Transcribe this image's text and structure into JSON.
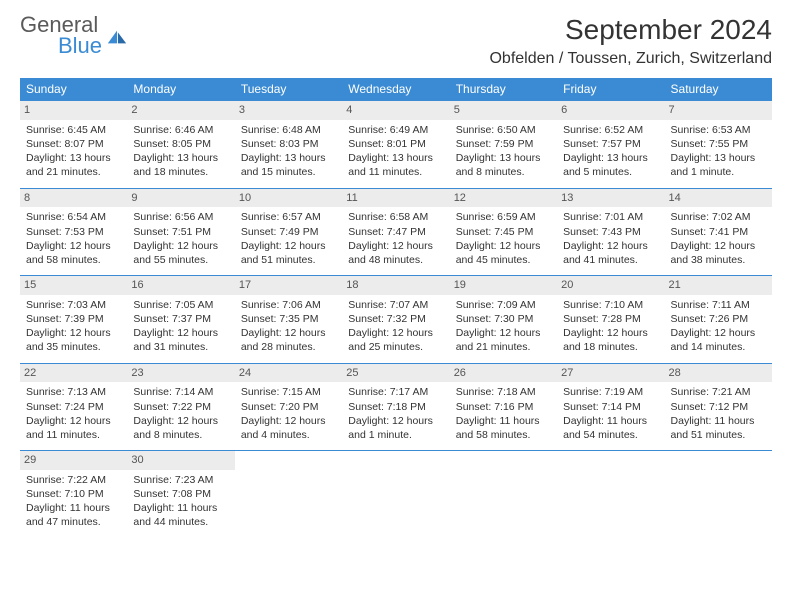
{
  "brand": {
    "general": "General",
    "blue": "Blue"
  },
  "title": "September 2024",
  "location": "Obfelden / Toussen, Zurich, Switzerland",
  "colors": {
    "accent": "#3b8bd4",
    "headerBg": "#3b8bd4",
    "dayNumBg": "#ececec"
  },
  "weekdays": [
    "Sunday",
    "Monday",
    "Tuesday",
    "Wednesday",
    "Thursday",
    "Friday",
    "Saturday"
  ],
  "days": [
    {
      "n": "1",
      "sunrise": "6:45 AM",
      "sunset": "8:07 PM",
      "daylight": "13 hours and 21 minutes."
    },
    {
      "n": "2",
      "sunrise": "6:46 AM",
      "sunset": "8:05 PM",
      "daylight": "13 hours and 18 minutes."
    },
    {
      "n": "3",
      "sunrise": "6:48 AM",
      "sunset": "8:03 PM",
      "daylight": "13 hours and 15 minutes."
    },
    {
      "n": "4",
      "sunrise": "6:49 AM",
      "sunset": "8:01 PM",
      "daylight": "13 hours and 11 minutes."
    },
    {
      "n": "5",
      "sunrise": "6:50 AM",
      "sunset": "7:59 PM",
      "daylight": "13 hours and 8 minutes."
    },
    {
      "n": "6",
      "sunrise": "6:52 AM",
      "sunset": "7:57 PM",
      "daylight": "13 hours and 5 minutes."
    },
    {
      "n": "7",
      "sunrise": "6:53 AM",
      "sunset": "7:55 PM",
      "daylight": "13 hours and 1 minute."
    },
    {
      "n": "8",
      "sunrise": "6:54 AM",
      "sunset": "7:53 PM",
      "daylight": "12 hours and 58 minutes."
    },
    {
      "n": "9",
      "sunrise": "6:56 AM",
      "sunset": "7:51 PM",
      "daylight": "12 hours and 55 minutes."
    },
    {
      "n": "10",
      "sunrise": "6:57 AM",
      "sunset": "7:49 PM",
      "daylight": "12 hours and 51 minutes."
    },
    {
      "n": "11",
      "sunrise": "6:58 AM",
      "sunset": "7:47 PM",
      "daylight": "12 hours and 48 minutes."
    },
    {
      "n": "12",
      "sunrise": "6:59 AM",
      "sunset": "7:45 PM",
      "daylight": "12 hours and 45 minutes."
    },
    {
      "n": "13",
      "sunrise": "7:01 AM",
      "sunset": "7:43 PM",
      "daylight": "12 hours and 41 minutes."
    },
    {
      "n": "14",
      "sunrise": "7:02 AM",
      "sunset": "7:41 PM",
      "daylight": "12 hours and 38 minutes."
    },
    {
      "n": "15",
      "sunrise": "7:03 AM",
      "sunset": "7:39 PM",
      "daylight": "12 hours and 35 minutes."
    },
    {
      "n": "16",
      "sunrise": "7:05 AM",
      "sunset": "7:37 PM",
      "daylight": "12 hours and 31 minutes."
    },
    {
      "n": "17",
      "sunrise": "7:06 AM",
      "sunset": "7:35 PM",
      "daylight": "12 hours and 28 minutes."
    },
    {
      "n": "18",
      "sunrise": "7:07 AM",
      "sunset": "7:32 PM",
      "daylight": "12 hours and 25 minutes."
    },
    {
      "n": "19",
      "sunrise": "7:09 AM",
      "sunset": "7:30 PM",
      "daylight": "12 hours and 21 minutes."
    },
    {
      "n": "20",
      "sunrise": "7:10 AM",
      "sunset": "7:28 PM",
      "daylight": "12 hours and 18 minutes."
    },
    {
      "n": "21",
      "sunrise": "7:11 AM",
      "sunset": "7:26 PM",
      "daylight": "12 hours and 14 minutes."
    },
    {
      "n": "22",
      "sunrise": "7:13 AM",
      "sunset": "7:24 PM",
      "daylight": "12 hours and 11 minutes."
    },
    {
      "n": "23",
      "sunrise": "7:14 AM",
      "sunset": "7:22 PM",
      "daylight": "12 hours and 8 minutes."
    },
    {
      "n": "24",
      "sunrise": "7:15 AM",
      "sunset": "7:20 PM",
      "daylight": "12 hours and 4 minutes."
    },
    {
      "n": "25",
      "sunrise": "7:17 AM",
      "sunset": "7:18 PM",
      "daylight": "12 hours and 1 minute."
    },
    {
      "n": "26",
      "sunrise": "7:18 AM",
      "sunset": "7:16 PM",
      "daylight": "11 hours and 58 minutes."
    },
    {
      "n": "27",
      "sunrise": "7:19 AM",
      "sunset": "7:14 PM",
      "daylight": "11 hours and 54 minutes."
    },
    {
      "n": "28",
      "sunrise": "7:21 AM",
      "sunset": "7:12 PM",
      "daylight": "11 hours and 51 minutes."
    },
    {
      "n": "29",
      "sunrise": "7:22 AM",
      "sunset": "7:10 PM",
      "daylight": "11 hours and 47 minutes."
    },
    {
      "n": "30",
      "sunrise": "7:23 AM",
      "sunset": "7:08 PM",
      "daylight": "11 hours and 44 minutes."
    }
  ],
  "labels": {
    "sunrise": "Sunrise:",
    "sunset": "Sunset:",
    "daylight": "Daylight:"
  },
  "layout": {
    "startOffset": 0,
    "totalCells": 35
  }
}
